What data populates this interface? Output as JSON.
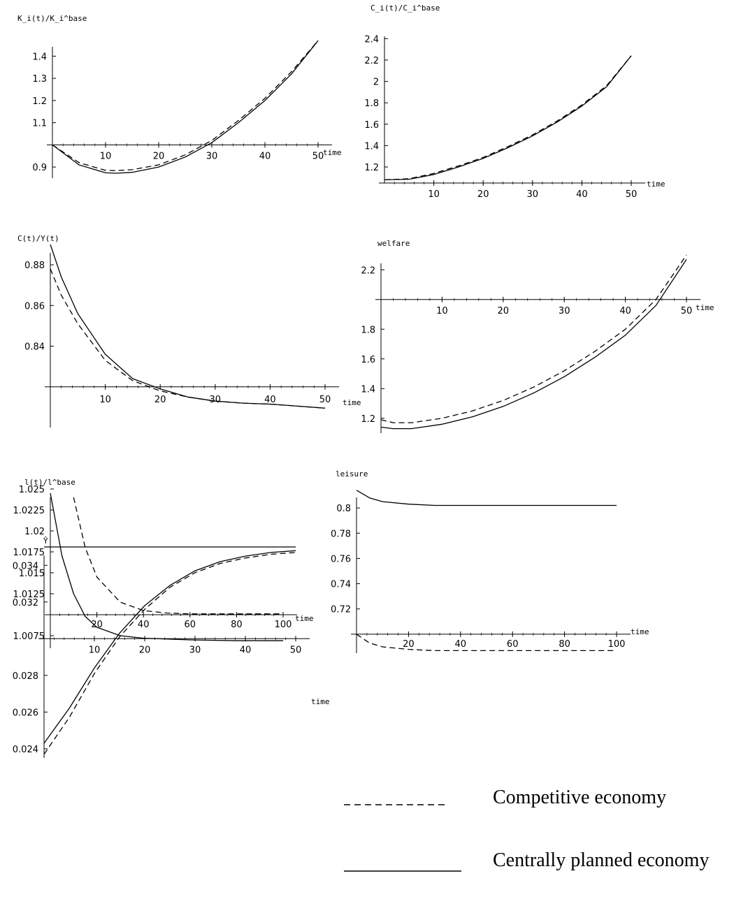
{
  "legend": [
    {
      "label": "Competitive economy",
      "style": "dashed"
    },
    {
      "label": "Centrally planned economy",
      "style": "solid"
    }
  ],
  "chart_data": [
    {
      "type": "line",
      "ylabel": "K_i(t)/K_i^base",
      "xlabel": "time",
      "xlim": [
        0,
        50
      ],
      "ylim": [
        0.85,
        1.48
      ],
      "xticks": [
        10,
        20,
        30,
        40,
        50
      ],
      "yticks": [
        0.9,
        1.1,
        1.2,
        1.3,
        1.4
      ],
      "axis_y": 1.0,
      "series": [
        {
          "style": "solid",
          "x": [
            0,
            5,
            10,
            12,
            15,
            20,
            25,
            30,
            35,
            40,
            45,
            50
          ],
          "y": [
            1.0,
            0.91,
            0.874,
            0.872,
            0.876,
            0.9,
            0.945,
            1.01,
            1.1,
            1.2,
            1.32,
            1.47
          ]
        },
        {
          "style": "dashed",
          "x": [
            0,
            5,
            10,
            12,
            15,
            20,
            25,
            30,
            35,
            40,
            45,
            50
          ],
          "y": [
            1.0,
            0.92,
            0.885,
            0.884,
            0.888,
            0.91,
            0.955,
            1.02,
            1.11,
            1.21,
            1.33,
            1.47
          ]
        }
      ]
    },
    {
      "type": "line",
      "ylabel": "C_i(t)/C_i^base",
      "xlabel": "time",
      "xlim": [
        0,
        50
      ],
      "ylim": [
        1.05,
        2.5
      ],
      "xticks": [
        10,
        20,
        30,
        40,
        50
      ],
      "yticks": [
        1.2,
        1.4,
        1.6,
        1.8,
        2,
        2.2,
        2.4
      ],
      "axis_y": 1.05,
      "series": [
        {
          "style": "solid",
          "x": [
            0,
            5,
            10,
            15,
            20,
            25,
            30,
            35,
            40,
            45,
            50
          ],
          "y": [
            1.08,
            1.085,
            1.13,
            1.2,
            1.28,
            1.38,
            1.49,
            1.62,
            1.77,
            1.95,
            2.24
          ]
        },
        {
          "style": "dashed",
          "x": [
            0,
            5,
            10,
            15,
            20,
            25,
            30,
            35,
            40,
            45,
            50
          ],
          "y": [
            1.08,
            1.09,
            1.14,
            1.21,
            1.29,
            1.39,
            1.5,
            1.63,
            1.78,
            1.96,
            2.24
          ]
        }
      ]
    },
    {
      "type": "line",
      "ylabel": "C(t)/Y(t)",
      "xlabel": "time",
      "xlim": [
        0,
        50
      ],
      "ylim": [
        0.8,
        0.89
      ],
      "xticks": [
        10,
        20,
        30,
        40,
        50
      ],
      "yticks": [
        0.84,
        0.86,
        0.88
      ],
      "axis_y": 0.82,
      "series": [
        {
          "style": "solid",
          "x": [
            0,
            2,
            5,
            10,
            15,
            20,
            25,
            30,
            35,
            40,
            45,
            50
          ],
          "y": [
            0.89,
            0.874,
            0.856,
            0.836,
            0.824,
            0.819,
            0.815,
            0.813,
            0.812,
            0.8115,
            0.8105,
            0.8095
          ]
        },
        {
          "style": "dashed",
          "x": [
            0,
            2,
            5,
            10,
            15,
            20,
            25,
            30,
            35,
            40,
            45,
            50
          ],
          "y": [
            0.878,
            0.865,
            0.851,
            0.833,
            0.823,
            0.818,
            0.815,
            0.813,
            0.812,
            0.8115,
            0.8105,
            0.8095
          ]
        }
      ]
    },
    {
      "type": "line",
      "ylabel": "welfare",
      "xlabel": "time",
      "xlim": [
        0,
        50
      ],
      "ylim": [
        1.1,
        2.3
      ],
      "xticks": [
        10,
        20,
        30,
        40,
        50
      ],
      "yticks": [
        1.2,
        1.4,
        1.6,
        1.8,
        2.2
      ],
      "axis_y": 2.0,
      "series": [
        {
          "style": "solid",
          "x": [
            0,
            2,
            5,
            10,
            15,
            20,
            25,
            30,
            35,
            40,
            45,
            50
          ],
          "y": [
            1.14,
            1.13,
            1.13,
            1.16,
            1.21,
            1.28,
            1.37,
            1.48,
            1.61,
            1.76,
            1.96,
            2.27
          ]
        },
        {
          "style": "dashed",
          "x": [
            0,
            2,
            5,
            10,
            15,
            20,
            25,
            30,
            35,
            40,
            45,
            50
          ],
          "y": [
            1.19,
            1.17,
            1.17,
            1.2,
            1.25,
            1.32,
            1.41,
            1.52,
            1.65,
            1.8,
            2.0,
            2.3
          ]
        }
      ]
    },
    {
      "type": "line",
      "ylabel": "l(t)/l^base",
      "xlabel": "time",
      "xlim": [
        0,
        100
      ],
      "ylim": [
        1.006,
        1.025
      ],
      "xticks": [
        20,
        40,
        60,
        80,
        100
      ],
      "yticks": [
        1.0075,
        1.0125,
        1.015,
        1.0175,
        1.02,
        1.0225,
        1.025
      ],
      "ytick_labels": [
        "1.0075",
        "1.0125",
        "1.015",
        "1.0175",
        "1.02",
        "1.0225",
        "1.025"
      ],
      "axis_y": 1.01,
      "series": [
        {
          "style": "solid",
          "x": [
            0,
            5,
            10,
            15,
            20,
            30,
            40,
            60,
            80,
            100
          ],
          "y": [
            1.0245,
            1.017,
            1.0125,
            1.0098,
            1.0085,
            1.0075,
            1.0072,
            1.007,
            1.0069,
            1.0069
          ]
        },
        {
          "style": "dashed",
          "x": [
            10,
            15,
            20,
            30,
            40,
            50,
            60,
            80,
            100
          ],
          "y": [
            1.024,
            1.018,
            1.0145,
            1.0115,
            1.0105,
            1.0102,
            1.0101,
            1.0101,
            1.0101
          ]
        }
      ]
    },
    {
      "type": "line",
      "ylabel": "leisure",
      "xlabel": "time",
      "xlim": [
        0,
        100
      ],
      "ylim": [
        0.685,
        0.815
      ],
      "xticks": [
        20,
        40,
        60,
        80,
        100
      ],
      "yticks": [
        0.72,
        0.74,
        0.76,
        0.78,
        0.8
      ],
      "axis_y": 0.7,
      "series": [
        {
          "style": "solid",
          "x": [
            0,
            5,
            10,
            20,
            30,
            40,
            60,
            80,
            100
          ],
          "y": [
            0.814,
            0.808,
            0.805,
            0.803,
            0.802,
            0.802,
            0.802,
            0.802,
            0.802
          ]
        },
        {
          "style": "dashed",
          "x": [
            0,
            5,
            10,
            20,
            30,
            40,
            60,
            80,
            100
          ],
          "y": [
            0.7,
            0.693,
            0.69,
            0.688,
            0.687,
            0.687,
            0.687,
            0.687,
            0.687
          ]
        }
      ]
    },
    {
      "type": "line",
      "ylabel": "Ŷ",
      "xlabel": "time",
      "xlim": [
        0,
        50
      ],
      "ylim": [
        0.0235,
        0.035
      ],
      "xticks": [
        10,
        20,
        30,
        40,
        50
      ],
      "yticks": [
        0.024,
        0.026,
        0.028,
        0.032,
        0.034
      ],
      "axis_y": 0.03,
      "series": [
        {
          "style": "solid",
          "x": [
            0,
            5,
            10,
            15,
            20,
            25,
            30,
            35,
            40,
            45,
            50
          ],
          "y": [
            0.0243,
            0.0262,
            0.0284,
            0.0303,
            0.0318,
            0.0329,
            0.0337,
            0.0342,
            0.0345,
            0.0347,
            0.0348
          ]
        },
        {
          "style": "dashed",
          "x": [
            0,
            5,
            10,
            15,
            20,
            25,
            30,
            35,
            40,
            45,
            50
          ],
          "y": [
            0.0237,
            0.0257,
            0.0281,
            0.0301,
            0.0316,
            0.0328,
            0.0336,
            0.0341,
            0.0344,
            0.0346,
            0.0347
          ]
        },
        {
          "style": "solid",
          "x": [
            0,
            50
          ],
          "y": [
            0.035,
            0.035
          ]
        }
      ]
    }
  ]
}
